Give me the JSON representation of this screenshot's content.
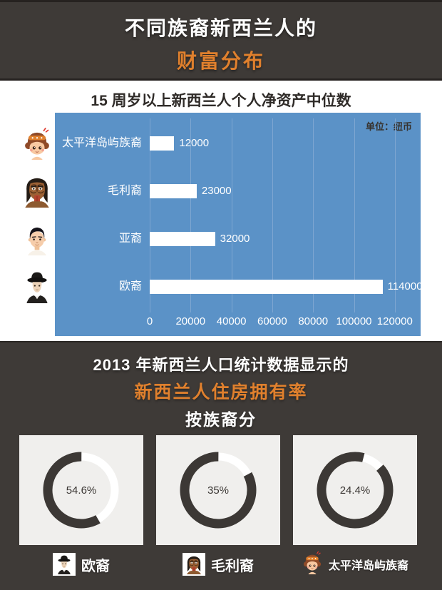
{
  "header": {
    "title_line1": "不同族裔新西兰人的",
    "title_line2": "财富分布"
  },
  "bar_chart": {
    "title": "15 周岁以上新西兰人个人净资产中位数",
    "unit_label": "单位：纽币"
  },
  "housing": {
    "title_line1": "2013 年新西兰人口统计数据显示的",
    "title_line2": "新西兰人住房拥有率",
    "title_line3": "按族裔分"
  },
  "chart_data": [
    {
      "type": "bar",
      "orientation": "horizontal",
      "title": "15 周岁以上新西兰人个人净资产中位数",
      "unit": "纽币",
      "categories": [
        "太平洋岛屿族裔",
        "毛利裔",
        "亚裔",
        "欧裔"
      ],
      "icons": [
        "pacific-islander-avatar",
        "maori-avatar",
        "asian-avatar",
        "european-avatar"
      ],
      "values": [
        12000,
        23000,
        32000,
        114000
      ],
      "value_labels": [
        "12000",
        "23000",
        "32000",
        "114000"
      ],
      "xlim": [
        0,
        120000
      ],
      "x_ticks": [
        "0",
        "20000",
        "40000",
        "60000",
        "80000",
        "100000",
        "120000"
      ],
      "grid": true,
      "plot_bg": "#5b92c7",
      "bar_color": "#ffffff"
    },
    {
      "type": "pie",
      "subtype": "donut",
      "title": "2013 年新西兰人口统计数据显示的新西兰人住房拥有率（按族裔分）",
      "categories": [
        "欧裔",
        "毛利裔",
        "太平洋岛屿族裔"
      ],
      "values": [
        54.6,
        35,
        24.4
      ],
      "value_labels": [
        "54.6%",
        "35%",
        "24.4%"
      ],
      "icons": [
        "european-avatar",
        "maori-avatar",
        "pacific-islander-avatar"
      ],
      "icon_boxed": [
        true,
        true,
        false
      ],
      "ring_white_gap_deg": [
        [
          0,
          150
        ],
        [
          0,
          62
        ],
        [
          14,
          48
        ]
      ],
      "ring_color": "#3c3835",
      "gap_color": "#ffffff",
      "panel_bg": "#f0efed",
      "legend_position": "bottom"
    }
  ],
  "colors": {
    "background_dark": "#3e3a37",
    "accent_orange": "#e0802d",
    "chart_blue": "#5b92c7",
    "gridline_blue": "#7ea6d1",
    "panel_gray": "#f0efed",
    "bar_white": "#ffffff",
    "text_dark": "#2f2b28"
  }
}
